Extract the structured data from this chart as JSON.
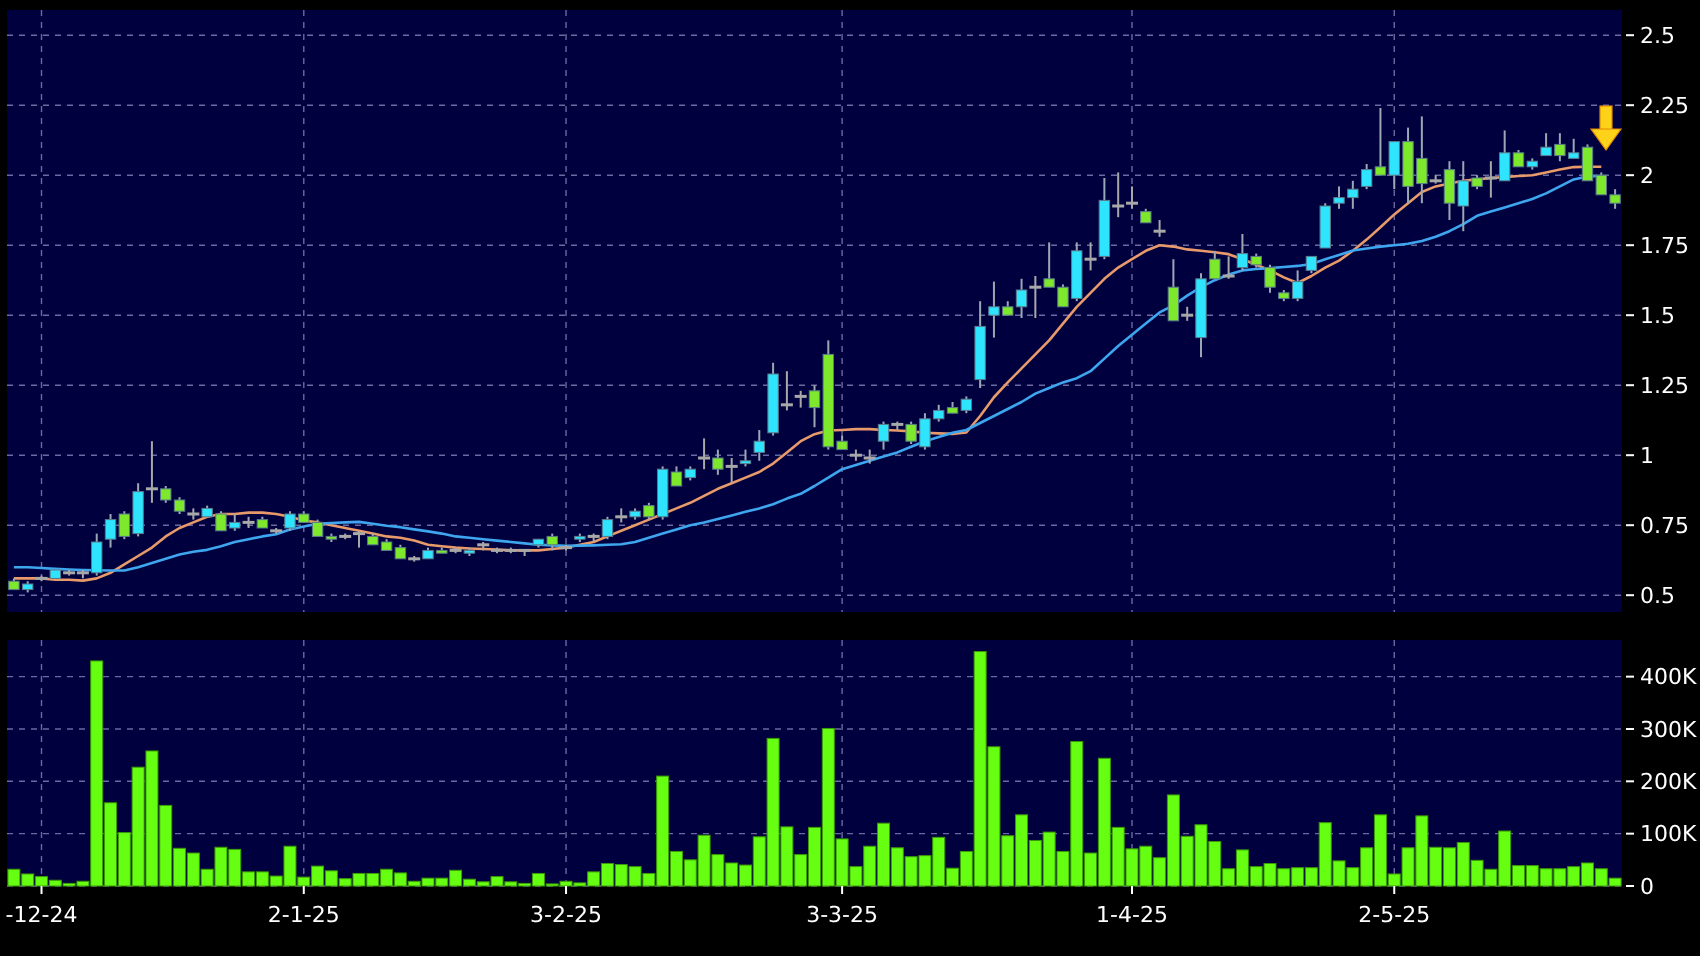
{
  "chart_data": [
    {
      "type": "candlestick",
      "categories": [
        null,
        null,
        null,
        null,
        null,
        null,
        null,
        null,
        null,
        null,
        null,
        null,
        null,
        null,
        null,
        null,
        null,
        null,
        null,
        null,
        null,
        null,
        null,
        null,
        null,
        null,
        null,
        null,
        null,
        null,
        null,
        null,
        null,
        null,
        null,
        null,
        null,
        null,
        null,
        null,
        null,
        null,
        null,
        null,
        null,
        null,
        null,
        null,
        null,
        null,
        null,
        null,
        null,
        null,
        null,
        null,
        null,
        null,
        null,
        null,
        null,
        null,
        null,
        null,
        null,
        null,
        null,
        null,
        null,
        null,
        null,
        null,
        null,
        null,
        null,
        null,
        null,
        null,
        null,
        null,
        null,
        null,
        null,
        null,
        null,
        null,
        null,
        null,
        null,
        null,
        null,
        null,
        null,
        null,
        null,
        null,
        null,
        null,
        null,
        null,
        null,
        null,
        null,
        null,
        null,
        null,
        null,
        null,
        null,
        null,
        null,
        null,
        null,
        null,
        null,
        null,
        null
      ],
      "ohlc": [
        [
          0.55,
          0.56,
          0.52,
          0.52
        ],
        [
          0.52,
          0.55,
          0.51,
          0.54
        ],
        [
          0.56,
          0.57,
          0.55,
          0.56
        ],
        [
          0.56,
          0.59,
          0.56,
          0.59
        ],
        [
          0.58,
          0.59,
          0.57,
          0.58
        ],
        [
          0.58,
          0.59,
          0.56,
          0.58
        ],
        [
          0.58,
          0.72,
          0.57,
          0.69
        ],
        [
          0.7,
          0.79,
          0.67,
          0.77
        ],
        [
          0.79,
          0.8,
          0.7,
          0.71
        ],
        [
          0.72,
          0.9,
          0.71,
          0.87
        ],
        [
          0.88,
          1.05,
          0.83,
          0.88
        ],
        [
          0.88,
          0.89,
          0.83,
          0.84
        ],
        [
          0.84,
          0.85,
          0.79,
          0.8
        ],
        [
          0.79,
          0.81,
          0.77,
          0.79
        ],
        [
          0.78,
          0.82,
          0.78,
          0.81
        ],
        [
          0.79,
          0.8,
          0.73,
          0.73
        ],
        [
          0.74,
          0.79,
          0.73,
          0.76
        ],
        [
          0.76,
          0.78,
          0.74,
          0.76
        ],
        [
          0.77,
          0.78,
          0.74,
          0.74
        ],
        [
          0.73,
          0.74,
          0.72,
          0.73
        ],
        [
          0.74,
          0.8,
          0.73,
          0.79
        ],
        [
          0.79,
          0.8,
          0.76,
          0.76
        ],
        [
          0.76,
          0.77,
          0.71,
          0.71
        ],
        [
          0.71,
          0.72,
          0.69,
          0.7
        ],
        [
          0.71,
          0.72,
          0.7,
          0.71
        ],
        [
          0.72,
          0.73,
          0.67,
          0.72
        ],
        [
          0.71,
          0.72,
          0.68,
          0.68
        ],
        [
          0.69,
          0.7,
          0.66,
          0.66
        ],
        [
          0.67,
          0.68,
          0.63,
          0.63
        ],
        [
          0.63,
          0.64,
          0.62,
          0.63
        ],
        [
          0.63,
          0.67,
          0.63,
          0.66
        ],
        [
          0.66,
          0.67,
          0.65,
          0.65
        ],
        [
          0.66,
          0.67,
          0.65,
          0.66
        ],
        [
          0.65,
          0.67,
          0.64,
          0.66
        ],
        [
          0.68,
          0.69,
          0.66,
          0.68
        ],
        [
          0.66,
          0.67,
          0.65,
          0.66
        ],
        [
          0.66,
          0.67,
          0.65,
          0.66
        ],
        [
          0.66,
          0.66,
          0.64,
          0.66
        ],
        [
          0.68,
          0.7,
          0.67,
          0.7
        ],
        [
          0.71,
          0.72,
          0.66,
          0.68
        ],
        [
          0.67,
          0.68,
          0.66,
          0.67
        ],
        [
          0.7,
          0.72,
          0.69,
          0.71
        ],
        [
          0.71,
          0.72,
          0.69,
          0.71
        ],
        [
          0.71,
          0.78,
          0.7,
          0.77
        ],
        [
          0.78,
          0.81,
          0.76,
          0.78
        ],
        [
          0.78,
          0.81,
          0.77,
          0.8
        ],
        [
          0.82,
          0.83,
          0.77,
          0.78
        ],
        [
          0.78,
          0.96,
          0.77,
          0.95
        ],
        [
          0.94,
          0.96,
          0.89,
          0.89
        ],
        [
          0.92,
          0.96,
          0.91,
          0.95
        ],
        [
          0.99,
          1.06,
          0.95,
          0.99
        ],
        [
          0.99,
          1.02,
          0.93,
          0.95
        ],
        [
          0.96,
          0.99,
          0.9,
          0.96
        ],
        [
          0.97,
          1.02,
          0.96,
          0.98
        ],
        [
          1.01,
          1.09,
          0.98,
          1.05
        ],
        [
          1.08,
          1.33,
          1.07,
          1.29
        ],
        [
          1.18,
          1.3,
          1.16,
          1.18
        ],
        [
          1.21,
          1.23,
          1.17,
          1.21
        ],
        [
          1.23,
          1.25,
          1.1,
          1.17
        ],
        [
          1.36,
          1.41,
          1.02,
          1.03
        ],
        [
          1.05,
          1.07,
          1.02,
          1.02
        ],
        [
          1.0,
          1.02,
          0.98,
          1.0
        ],
        [
          0.99,
          1.02,
          0.97,
          0.99
        ],
        [
          1.05,
          1.12,
          1.02,
          1.11
        ],
        [
          1.11,
          1.12,
          1.09,
          1.11
        ],
        [
          1.11,
          1.12,
          1.04,
          1.05
        ],
        [
          1.03,
          1.15,
          1.02,
          1.13
        ],
        [
          1.13,
          1.18,
          1.12,
          1.16
        ],
        [
          1.17,
          1.19,
          1.15,
          1.15
        ],
        [
          1.16,
          1.21,
          1.15,
          1.2
        ],
        [
          1.27,
          1.55,
          1.24,
          1.46
        ],
        [
          1.5,
          1.62,
          1.42,
          1.53
        ],
        [
          1.53,
          1.55,
          1.5,
          1.5
        ],
        [
          1.53,
          1.63,
          1.49,
          1.59
        ],
        [
          1.6,
          1.64,
          1.49,
          1.6
        ],
        [
          1.63,
          1.76,
          1.6,
          1.6
        ],
        [
          1.6,
          1.61,
          1.53,
          1.53
        ],
        [
          1.56,
          1.76,
          1.55,
          1.73
        ],
        [
          1.7,
          1.76,
          1.66,
          1.7
        ],
        [
          1.71,
          1.99,
          1.7,
          1.91
        ],
        [
          1.89,
          2.01,
          1.85,
          1.89
        ],
        [
          1.9,
          1.96,
          1.88,
          1.9
        ],
        [
          1.87,
          1.88,
          1.83,
          1.83
        ],
        [
          1.8,
          1.84,
          1.78,
          1.8
        ],
        [
          1.6,
          1.7,
          1.48,
          1.48
        ],
        [
          1.5,
          1.53,
          1.48,
          1.5
        ],
        [
          1.42,
          1.65,
          1.35,
          1.63
        ],
        [
          1.7,
          1.73,
          1.63,
          1.63
        ],
        [
          1.64,
          1.71,
          1.63,
          1.64
        ],
        [
          1.67,
          1.79,
          1.66,
          1.72
        ],
        [
          1.71,
          1.72,
          1.67,
          1.68
        ],
        [
          1.67,
          1.68,
          1.58,
          1.6
        ],
        [
          1.58,
          1.59,
          1.55,
          1.56
        ],
        [
          1.56,
          1.66,
          1.55,
          1.62
        ],
        [
          1.66,
          1.71,
          1.65,
          1.71
        ],
        [
          1.74,
          1.9,
          1.74,
          1.89
        ],
        [
          1.9,
          1.96,
          1.88,
          1.92
        ],
        [
          1.92,
          1.98,
          1.88,
          1.95
        ],
        [
          1.96,
          2.04,
          1.95,
          2.02
        ],
        [
          2.03,
          2.24,
          2.0,
          2.0
        ],
        [
          2.0,
          2.12,
          1.95,
          2.12
        ],
        [
          2.12,
          2.17,
          1.9,
          1.96
        ],
        [
          2.06,
          2.21,
          1.9,
          1.97
        ],
        [
          1.98,
          2.0,
          1.97,
          1.98
        ],
        [
          2.02,
          2.05,
          1.84,
          1.9
        ],
        [
          1.89,
          2.05,
          1.8,
          1.98
        ],
        [
          1.99,
          2.0,
          1.95,
          1.96
        ],
        [
          1.99,
          2.05,
          1.92,
          1.99
        ],
        [
          1.98,
          2.16,
          1.98,
          2.08
        ],
        [
          2.08,
          2.09,
          2.03,
          2.03
        ],
        [
          2.03,
          2.06,
          2.02,
          2.05
        ],
        [
          2.07,
          2.15,
          2.07,
          2.1
        ],
        [
          2.11,
          2.15,
          2.05,
          2.07
        ],
        [
          2.06,
          2.13,
          2.06,
          2.08
        ],
        [
          2.1,
          2.11,
          1.98,
          1.98
        ],
        [
          2.0,
          2.01,
          1.93,
          1.93
        ],
        [
          1.93,
          1.95,
          1.88,
          1.9
        ]
      ],
      "series": [
        {
          "type": "line",
          "color": "#e89a6a",
          "values": [
            0.56,
            0.56,
            0.56,
            0.555,
            0.555,
            0.552,
            0.56,
            0.58,
            0.61,
            0.64,
            0.67,
            0.71,
            0.74,
            0.76,
            0.78,
            0.79,
            0.79,
            0.795,
            0.795,
            0.79,
            0.78,
            0.767,
            0.76,
            0.75,
            0.74,
            0.73,
            0.72,
            0.71,
            0.705,
            0.695,
            0.68,
            0.675,
            0.67,
            0.667,
            0.665,
            0.663,
            0.66,
            0.66,
            0.66,
            0.665,
            0.67,
            0.68,
            0.69,
            0.71,
            0.73,
            0.75,
            0.77,
            0.79,
            0.81,
            0.83,
            0.855,
            0.88,
            0.9,
            0.92,
            0.94,
            0.97,
            1.01,
            1.05,
            1.075,
            1.088,
            1.09,
            1.093,
            1.093,
            1.09,
            1.088,
            1.085,
            1.08,
            1.078,
            1.076,
            1.081,
            1.14,
            1.207,
            1.26,
            1.31,
            1.36,
            1.41,
            1.47,
            1.53,
            1.58,
            1.63,
            1.67,
            1.7,
            1.73,
            1.75,
            1.745,
            1.735,
            1.73,
            1.725,
            1.718,
            1.7,
            1.68,
            1.66,
            1.635,
            1.615,
            1.64,
            1.67,
            1.695,
            1.73,
            1.77,
            1.814,
            1.86,
            1.9,
            1.94,
            1.96,
            1.97,
            1.98,
            1.985,
            1.99,
            1.993,
            1.997,
            2.0,
            2.01,
            2.02,
            2.029,
            2.03,
            2.03,
            null
          ]
        },
        {
          "type": "line",
          "color": "#3ea6ee",
          "values": [
            0.6,
            0.6,
            0.597,
            0.594,
            0.592,
            0.59,
            0.589,
            0.588,
            0.588,
            0.6,
            0.615,
            0.63,
            0.645,
            0.655,
            0.662,
            0.675,
            0.69,
            0.7,
            0.71,
            0.718,
            0.735,
            0.745,
            0.755,
            0.758,
            0.76,
            0.762,
            0.755,
            0.748,
            0.743,
            0.735,
            0.728,
            0.72,
            0.71,
            0.705,
            0.7,
            0.695,
            0.69,
            0.685,
            0.68,
            0.678,
            0.676,
            0.677,
            0.678,
            0.68,
            0.682,
            0.69,
            0.705,
            0.72,
            0.735,
            0.75,
            0.76,
            0.772,
            0.785,
            0.798,
            0.81,
            0.825,
            0.845,
            0.862,
            0.89,
            0.92,
            0.95,
            0.965,
            0.98,
            0.995,
            1.01,
            1.03,
            1.05,
            1.065,
            1.08,
            1.09,
            1.115,
            1.14,
            1.165,
            1.19,
            1.22,
            1.24,
            1.26,
            1.275,
            1.3,
            1.345,
            1.39,
            1.43,
            1.47,
            1.51,
            1.535,
            1.57,
            1.6,
            1.625,
            1.645,
            1.66,
            1.665,
            1.668,
            1.672,
            1.676,
            1.683,
            1.7,
            1.715,
            1.731,
            1.738,
            1.745,
            1.75,
            1.755,
            1.765,
            1.78,
            1.8,
            1.825,
            1.855,
            1.87,
            1.885,
            1.9,
            1.915,
            1.935,
            1.96,
            1.985,
            1.995,
            1.998,
            null
          ]
        }
      ],
      "ylim": [
        0.44,
        2.59
      ],
      "yticks": [
        0.5,
        0.75,
        1,
        1.25,
        1.5,
        1.75,
        2,
        2.25,
        2.5
      ],
      "grid": true,
      "tick_labels": "y"
    },
    {
      "type": "bar",
      "categories": [
        null,
        null,
        "-12-24",
        null,
        null,
        null,
        null,
        null,
        null,
        null,
        null,
        null,
        null,
        null,
        null,
        null,
        null,
        null,
        null,
        null,
        null,
        "2-1-25",
        null,
        null,
        null,
        null,
        null,
        null,
        null,
        null,
        null,
        null,
        null,
        null,
        null,
        null,
        null,
        null,
        null,
        null,
        "3-2-25",
        null,
        null,
        null,
        null,
        null,
        null,
        null,
        null,
        null,
        null,
        null,
        null,
        null,
        null,
        null,
        null,
        null,
        null,
        null,
        "3-3-25",
        null,
        null,
        null,
        null,
        null,
        null,
        null,
        null,
        null,
        null,
        null,
        null,
        null,
        null,
        null,
        null,
        null,
        null,
        null,
        null,
        "1-4-25",
        null,
        null,
        null,
        null,
        null,
        null,
        null,
        null,
        null,
        null,
        null,
        null,
        null,
        null,
        null,
        null,
        null,
        null,
        "2-5-25",
        null,
        null,
        null,
        null,
        null,
        null,
        null,
        null,
        null,
        null,
        null,
        null,
        null,
        null,
        null,
        null
      ],
      "color": "#66ff11",
      "values": [
        32000,
        23000,
        18000,
        11000,
        5000,
        9000,
        430000,
        159000,
        102000,
        227000,
        258000,
        154000,
        72000,
        63000,
        32000,
        74000,
        70000,
        27000,
        27000,
        19000,
        76000,
        17000,
        38000,
        29000,
        14000,
        24000,
        24000,
        32000,
        25000,
        9000,
        15000,
        15000,
        30000,
        13000,
        8000,
        18000,
        8000,
        5000,
        24000,
        4000,
        9000,
        6000,
        27000,
        43000,
        41000,
        37000,
        24000,
        210000,
        66000,
        50000,
        97000,
        60000,
        44000,
        40000,
        94000,
        282000,
        113000,
        60000,
        112000,
        301000,
        90000,
        37000,
        76000,
        120000,
        73000,
        56000,
        58000,
        93000,
        34000,
        66000,
        448000,
        266000,
        96000,
        136000,
        87000,
        103000,
        66000,
        276000,
        63000,
        244000,
        112000,
        71000,
        76000,
        54000,
        174000,
        95000,
        117000,
        85000,
        33000,
        69000,
        37000,
        43000,
        33000,
        35000,
        35000,
        121000,
        48000,
        35000,
        73000,
        136000,
        23000,
        73000,
        134000,
        74000,
        73000,
        83000,
        49000,
        32000,
        105000,
        39000,
        39000,
        33000,
        33000,
        37000,
        44000,
        33000,
        15000
      ],
      "ylim": [
        0,
        470000
      ],
      "yticks": [
        0,
        {
          "value": 100000,
          "label": "100K"
        },
        {
          "value": 200000,
          "label": "200K"
        },
        {
          "value": 300000,
          "label": "300K"
        },
        {
          "value": 400000,
          "label": "400K"
        }
      ],
      "grid": true
    }
  ]
}
